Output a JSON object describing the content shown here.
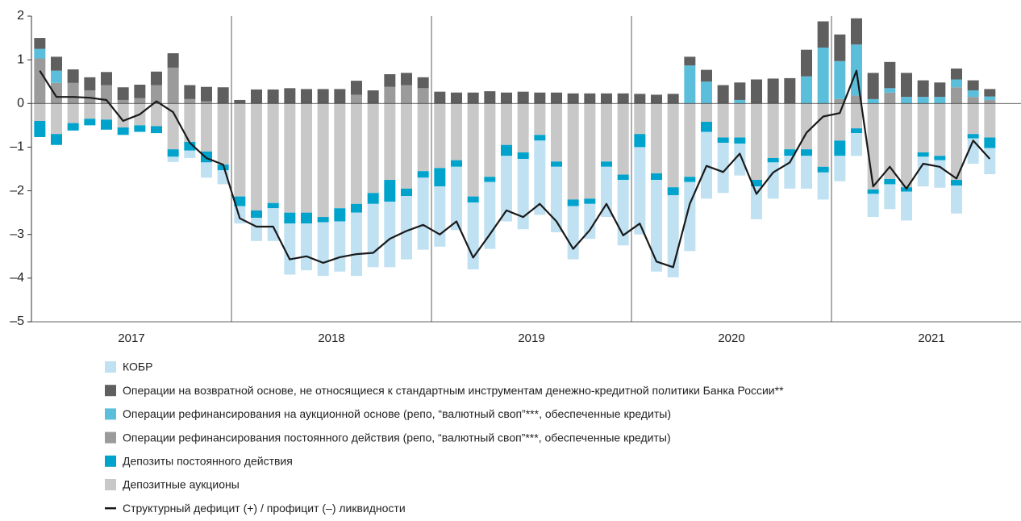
{
  "chart_data": {
    "type": "stacked_bar_line",
    "categories": [
      null,
      null,
      null,
      null,
      null,
      null,
      null,
      null,
      null,
      null,
      null,
      null,
      null,
      null,
      null,
      null,
      null,
      null,
      null,
      null,
      null,
      null,
      null,
      null,
      null,
      null,
      null,
      null,
      null,
      null,
      null,
      null,
      null,
      null,
      null,
      null,
      null,
      null,
      null,
      null,
      null,
      null,
      null,
      null,
      null,
      null,
      null,
      null,
      null,
      null,
      null,
      null,
      null,
      null,
      null,
      null,
      null,
      null
    ],
    "year_labels": [
      "2017",
      "2018",
      "2019",
      "2020",
      "2021"
    ],
    "ylim": [
      -5,
      2
    ],
    "yticks": [
      {
        "value": -5,
        "label": "–5"
      },
      {
        "value": -4,
        "label": "–4"
      },
      {
        "value": -3,
        "label": "–3"
      },
      {
        "value": -2,
        "label": "–2"
      },
      {
        "value": -1,
        "label": "–1"
      },
      0,
      1,
      2
    ],
    "series": [
      {
        "name": "КОБР",
        "color": "#bfe1f2",
        "values": [
          0,
          0,
          0,
          0,
          0,
          0,
          0,
          0,
          -0.12,
          -0.17,
          -0.35,
          -0.32,
          -0.4,
          -0.53,
          -0.75,
          -1.17,
          -1.07,
          -1.23,
          -1.15,
          -1.45,
          -1.45,
          -1.5,
          -1.45,
          -1.65,
          -1.38,
          -1.45,
          -1.53,
          -1.53,
          -1.5,
          -1.61,
          -1.7,
          -1.5,
          -1.22,
          -0.8,
          -1.15,
          -1.5,
          -2.0,
          -2.1,
          -1.88,
          -1.58,
          -1.53,
          -1.15,
          -0.73,
          -0.75,
          -0.83,
          -0.75,
          -0.75,
          -0.62,
          -0.58,
          -0.52,
          -0.53,
          -0.57,
          -0.66,
          -0.68,
          -0.63,
          -0.64,
          -0.58,
          -0.6
        ]
      },
      {
        "name": "Операции на возвратной основе, не относящиеся к стандартным инструментам денежно-кредитной политики Банка России**",
        "color": "#5f5f5f",
        "values": [
          0.25,
          0.32,
          0.31,
          0.3,
          0.3,
          0.29,
          0.31,
          0.31,
          0.33,
          0.32,
          0.33,
          0.37,
          0.08,
          0.32,
          0.32,
          0.35,
          0.33,
          0.33,
          0.33,
          0.32,
          0.3,
          0.29,
          0.28,
          0.25,
          0.27,
          0.25,
          0.25,
          0.28,
          0.25,
          0.27,
          0.25,
          0.25,
          0.23,
          0.23,
          0.23,
          0.23,
          0.22,
          0.2,
          0.22,
          0.2,
          0.27,
          0.42,
          0.4,
          0.55,
          0.57,
          0.58,
          0.61,
          0.6,
          0.61,
          0.6,
          0.6,
          0.6,
          0.55,
          0.38,
          0.33,
          0.25,
          0.23,
          0.17
        ]
      },
      {
        "name": "Операции рефинансирования на аукционной основе (репо, “валютный своп”***, обеспеченные кредиты)",
        "color": "#5bbfdc",
        "values": [
          0.22,
          0.28,
          0,
          0,
          0,
          0,
          0,
          0,
          0,
          0,
          0,
          0,
          0,
          0,
          0,
          0,
          0,
          0,
          0,
          0,
          0,
          0,
          0,
          0,
          0,
          0,
          0,
          0,
          0,
          0,
          0,
          0,
          0,
          0,
          0,
          0,
          0,
          0,
          0,
          0.87,
          0.5,
          0,
          0.08,
          0,
          0,
          0,
          0.62,
          1.28,
          0.87,
          1.17,
          0.1,
          0.1,
          0.15,
          0.15,
          0.15,
          0.18,
          0.15,
          0.08
        ]
      },
      {
        "name": "Операции рефинансирования постоянного действия (репо, “валютный своп”***, обеспеченные кредиты)",
        "color": "#9b9b9b",
        "values": [
          1.03,
          0.47,
          0.47,
          0.3,
          0.42,
          0.08,
          0.12,
          0.42,
          0.82,
          0.1,
          0.05,
          0,
          0,
          0,
          0,
          0,
          0,
          0,
          0,
          0.2,
          0,
          0.38,
          0.42,
          0.35,
          0,
          0,
          0,
          0,
          0,
          0,
          0,
          0,
          0,
          0,
          0,
          0,
          0,
          0,
          0,
          0,
          0,
          0,
          0,
          0,
          0,
          0,
          0,
          0,
          0.1,
          0.18,
          0,
          0.25,
          0,
          0,
          0,
          0.37,
          0.15,
          0.08
        ]
      },
      {
        "name": "Депозиты постоянного действия",
        "color": "#00a3cc",
        "values": [
          -0.37,
          -0.25,
          -0.17,
          -0.15,
          -0.23,
          -0.17,
          -0.15,
          -0.16,
          -0.17,
          -0.2,
          -0.25,
          -0.13,
          -0.22,
          -0.17,
          -0.12,
          -0.25,
          -0.25,
          -0.12,
          -0.3,
          -0.2,
          -0.25,
          -0.5,
          -0.17,
          -0.15,
          -0.42,
          -0.15,
          -0.14,
          -0.12,
          -0.25,
          -0.15,
          -0.13,
          -0.12,
          -0.15,
          -0.12,
          -0.12,
          -0.12,
          -0.3,
          -0.15,
          -0.18,
          -0.12,
          -0.23,
          -0.12,
          -0.14,
          -0.15,
          -0.1,
          -0.15,
          -0.15,
          -0.13,
          -0.35,
          -0.11,
          -0.1,
          -0.12,
          -0.1,
          -0.1,
          -0.1,
          -0.13,
          -0.1,
          -0.24
        ]
      },
      {
        "name": "Депозитные аукционы",
        "color": "#c8c8c8",
        "values": [
          -0.4,
          -0.7,
          -0.45,
          -0.35,
          -0.37,
          -0.55,
          -0.5,
          -0.52,
          -1.05,
          -0.88,
          -1.1,
          -1.4,
          -2.13,
          -2.45,
          -2.28,
          -2.5,
          -2.5,
          -2.6,
          -2.4,
          -2.3,
          -2.05,
          -1.75,
          -1.95,
          -1.55,
          -1.48,
          -1.3,
          -2.13,
          -1.68,
          -0.95,
          -1.12,
          -0.72,
          -1.33,
          -2.2,
          -2.18,
          -1.33,
          -1.63,
          -0.7,
          -1.6,
          -1.92,
          -1.68,
          -0.42,
          -0.78,
          -0.78,
          -1.75,
          -1.25,
          -1.05,
          -1.05,
          -1.45,
          -0.85,
          -0.57,
          -1.97,
          -1.73,
          -1.92,
          -1.12,
          -1.2,
          -1.75,
          -0.7,
          -0.78
        ]
      },
      {
        "name": "Структурный дефицит (+) / профицит (–) ликвидности",
        "color": "#1a1a1a",
        "kind": "line",
        "values": [
          0.75,
          0.15,
          0.15,
          0.13,
          0.08,
          -0.4,
          -0.25,
          0.05,
          -0.2,
          -0.9,
          -1.25,
          -1.4,
          -2.63,
          -2.82,
          -2.82,
          -3.57,
          -3.5,
          -3.65,
          -3.52,
          -3.45,
          -3.42,
          -3.1,
          -2.92,
          -2.78,
          -3.0,
          -2.7,
          -3.53,
          -3.0,
          -2.45,
          -2.6,
          -2.3,
          -2.7,
          -3.33,
          -2.9,
          -2.3,
          -3.02,
          -2.75,
          -3.62,
          -3.75,
          -2.3,
          -1.43,
          -1.57,
          -1.15,
          -2.07,
          -1.58,
          -1.35,
          -0.67,
          -0.3,
          -0.22,
          0.75,
          -1.9,
          -1.45,
          -1.95,
          -1.38,
          -1.45,
          -1.72,
          -0.85,
          -1.27
        ]
      }
    ]
  }
}
